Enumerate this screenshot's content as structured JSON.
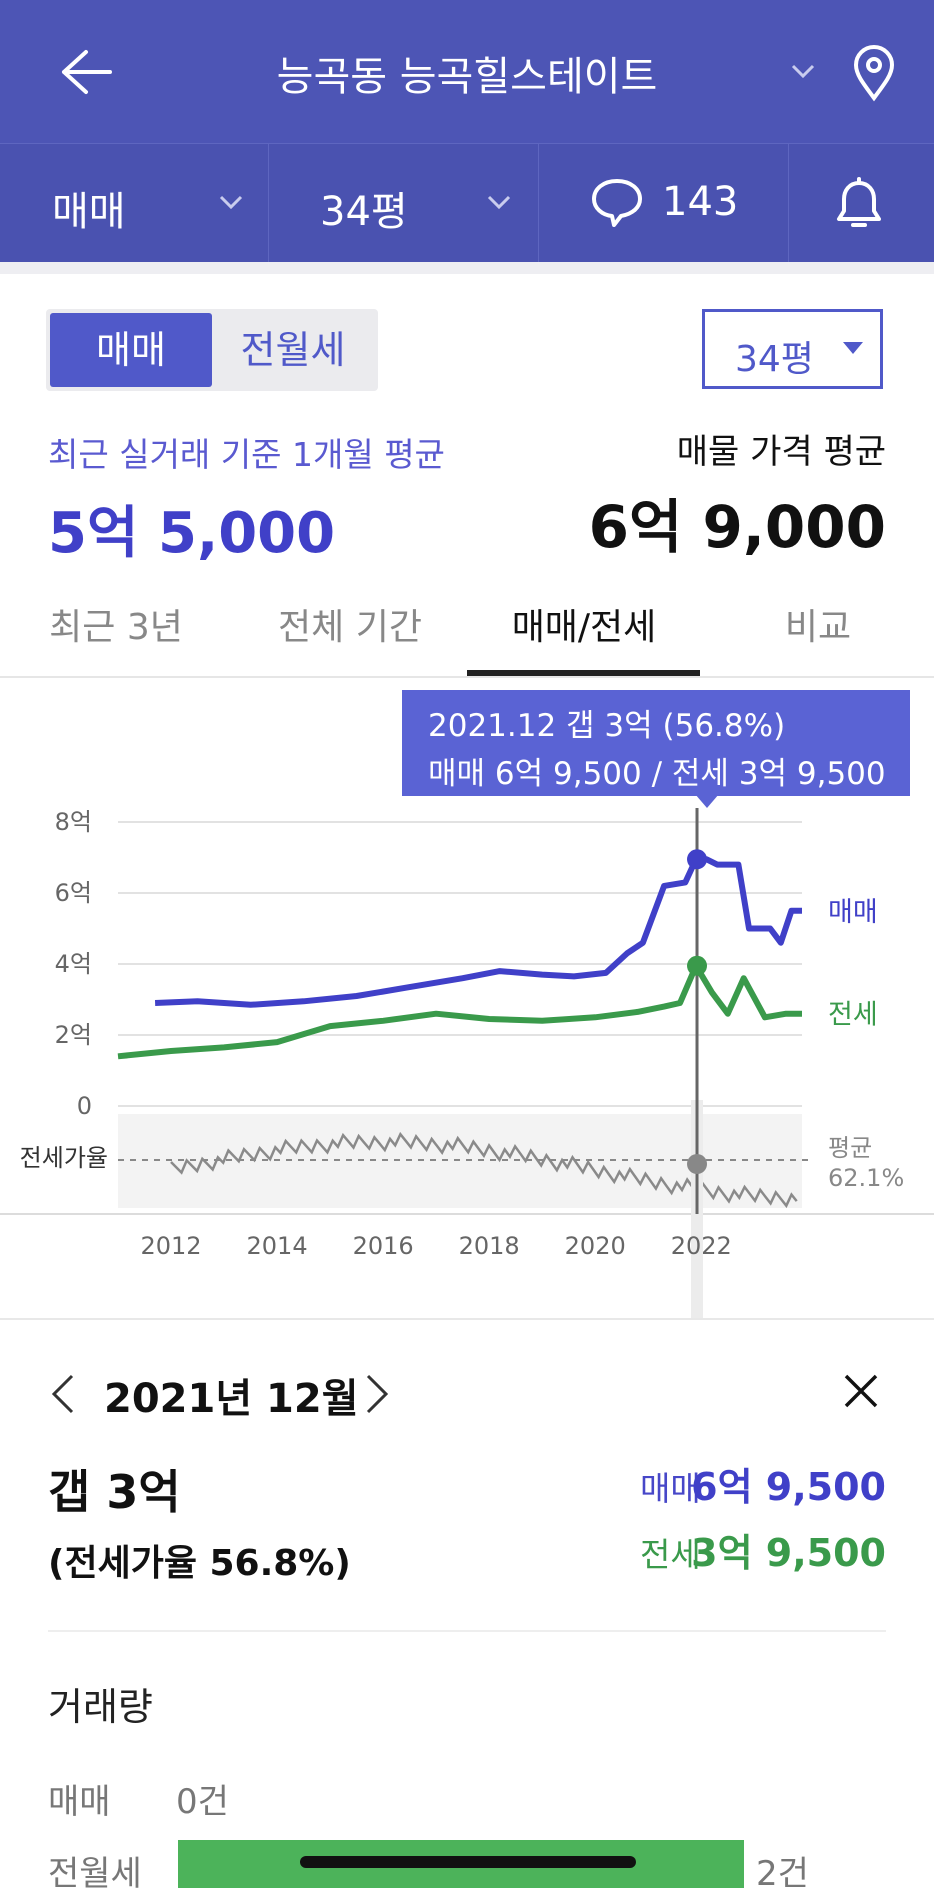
{
  "header": {
    "title": "능곡동 능곡힐스테이트",
    "trade_type": "매매",
    "size": "34평",
    "comment_count": "143"
  },
  "segment": {
    "on": "매매",
    "off": "전월세"
  },
  "size_select": "34평",
  "summary": {
    "left_label": "최근 실거래 기준 1개월 평균",
    "left_value": "5억 5,000",
    "right_label": "매물 가격 평균",
    "right_value": "6억 9,000"
  },
  "tabs": [
    "최근 3년",
    "전체 기간",
    "매매/전세",
    "비교"
  ],
  "tabs_selected": "매매/전세",
  "tooltip": {
    "line1": "2021.12  갭 3억 (56.8%)",
    "line2": "매매 6억 9,500 / 전세 3억 9,500"
  },
  "chart_data": {
    "type": "line",
    "y_ticks": [
      "8억",
      "6억",
      "4억",
      "2억",
      "0"
    ],
    "ylim": [
      0,
      8
    ],
    "x_ticks": [
      "2012",
      "2014",
      "2016",
      "2018",
      "2020",
      "2022"
    ],
    "series": [
      {
        "name": "매매",
        "color": "#4040c8",
        "x": [
          2011.7,
          2012.5,
          2013.5,
          2014.5,
          2015.5,
          2016.5,
          2017.5,
          2018.2,
          2019.0,
          2019.6,
          2020.2,
          2020.6,
          2020.9,
          2021.3,
          2021.7,
          2021.9,
          2022.1,
          2022.3,
          2022.7,
          2022.9,
          2023.3,
          2023.5,
          2023.7,
          2023.9
        ],
        "values": [
          2.9,
          2.95,
          2.85,
          2.95,
          3.1,
          3.35,
          3.6,
          3.8,
          3.7,
          3.65,
          3.75,
          4.3,
          4.6,
          6.2,
          6.3,
          6.95,
          6.95,
          6.8,
          6.8,
          5.0,
          5.0,
          4.6,
          5.5,
          5.5
        ]
      },
      {
        "name": "전세",
        "color": "#3a9a4b",
        "x": [
          2011.0,
          2012.0,
          2013.0,
          2014.0,
          2015.0,
          2016.0,
          2017.0,
          2018.0,
          2019.0,
          2020.0,
          2020.8,
          2021.3,
          2021.6,
          2021.9,
          2022.2,
          2022.5,
          2022.8,
          2023.2,
          2023.6,
          2023.9
        ],
        "values": [
          1.4,
          1.55,
          1.65,
          1.8,
          2.25,
          2.4,
          2.6,
          2.45,
          2.4,
          2.5,
          2.65,
          2.8,
          2.9,
          3.95,
          3.2,
          2.6,
          3.6,
          2.5,
          2.6,
          2.6
        ]
      }
    ],
    "sub_label": "전세가율",
    "avg_label": "평균",
    "avg_value": "62.1%",
    "highlight_x": "2021.12"
  },
  "detail": {
    "month": "2021년 12월",
    "gap": "갭 3억",
    "ratio": "(전세가율 56.8%)",
    "sale_label": "매매",
    "sale_value": "6억 9,500",
    "rent_label": "전세",
    "rent_value": "3억 9,500"
  },
  "volume": {
    "title": "거래량",
    "rows": [
      {
        "label": "매매",
        "value": "0건"
      },
      {
        "label": "전월세",
        "value": "2건"
      }
    ]
  }
}
